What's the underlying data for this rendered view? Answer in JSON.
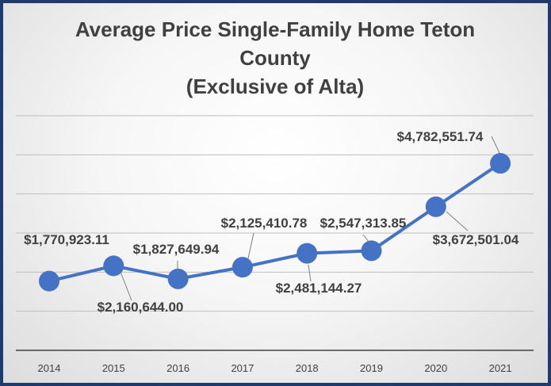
{
  "chart_data": {
    "type": "line",
    "title_lines": [
      "Average Price Single-Family Home Teton",
      "County",
      "(Exclusive of Alta)"
    ],
    "categories": [
      "2014",
      "2015",
      "2016",
      "2017",
      "2018",
      "2019",
      "2020",
      "2021"
    ],
    "values": [
      1770923.11,
      2160644.0,
      1827649.94,
      2125410.78,
      2481144.27,
      2547313.85,
      3672501.04,
      4782551.74
    ],
    "data_labels": [
      "$1,770,923.11",
      "$2,160,644.00",
      "$1,827,649.94",
      "$2,125,410.78",
      "$2,481,144.27",
      "$2,547,313.85",
      "$3,672,501.04",
      "$4,782,551.74"
    ],
    "ylim": [
      0,
      6000000
    ],
    "grid": true,
    "legend": "none",
    "colors": {
      "line": "#4472c4",
      "marker": "#4472c4",
      "grid": "#bfbfbf",
      "axis": "#404040",
      "frame": "#1f3a6b"
    }
  }
}
